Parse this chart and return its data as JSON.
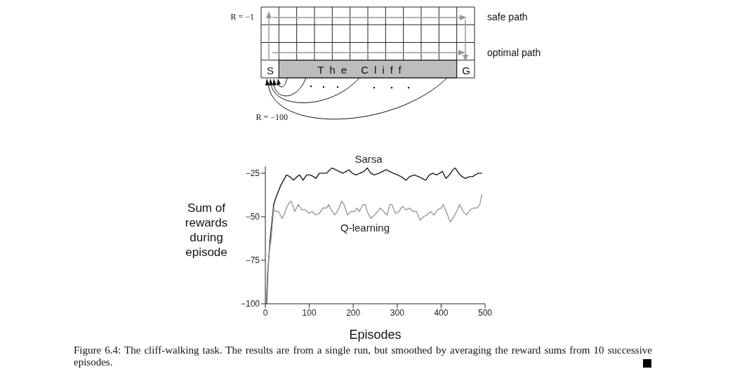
{
  "chart_data": {
    "type": "line",
    "xlabel": "Episodes",
    "ylabel": "Sum of rewards during episode",
    "xlim": [
      0,
      500
    ],
    "xticks": [
      0,
      100,
      200,
      300,
      400,
      500
    ],
    "ylim": [
      -100,
      -21
    ],
    "yticks": [
      {
        "value": -100,
        "label": "−100"
      },
      {
        "value": -75,
        "label": "−75"
      },
      {
        "value": -50,
        "label": "−50"
      },
      {
        "value": -25,
        "label": "−25"
      }
    ],
    "series": [
      {
        "name": "Sarsa",
        "color": "#1a1a1a",
        "x": [
          3,
          6,
          11,
          19,
          24,
          35,
          48,
          56,
          64,
          72,
          78,
          86,
          94,
          102,
          110,
          115,
          123,
          131,
          139,
          147,
          152,
          160,
          168,
          176,
          184,
          190,
          198,
          206,
          216,
          224,
          232,
          240,
          248,
          259,
          267,
          275,
          283,
          291,
          301,
          309,
          320,
          328,
          339,
          349,
          357,
          365,
          373,
          381,
          389,
          397,
          403,
          411,
          419,
          427,
          432,
          440,
          448,
          456,
          464,
          472,
          477,
          485,
          493
        ],
        "values": [
          -100,
          -80,
          -63,
          -43,
          -39,
          -32,
          -26,
          -27,
          -29,
          -27,
          -26,
          -29,
          -26,
          -26,
          -27,
          -28,
          -25,
          -25,
          -25,
          -23,
          -22,
          -23,
          -24,
          -25,
          -24,
          -23,
          -25,
          -26,
          -25,
          -24,
          -22,
          -25,
          -26,
          -25,
          -24,
          -23,
          -24,
          -25,
          -26,
          -27,
          -29,
          -27,
          -26,
          -27,
          -28,
          -29,
          -26,
          -25,
          -26,
          -25,
          -24,
          -28,
          -26,
          -23,
          -22,
          -25,
          -27,
          -28,
          -27,
          -27,
          -26,
          -25,
          -25
        ]
      },
      {
        "name": "Q-learning",
        "color": "#999999",
        "x": [
          2,
          5,
          9,
          13,
          19,
          22,
          30,
          38,
          43,
          48,
          54,
          59,
          67,
          75,
          83,
          91,
          99,
          107,
          115,
          123,
          131,
          139,
          144,
          150,
          158,
          166,
          174,
          179,
          187,
          195,
          203,
          208,
          214,
          222,
          227,
          232,
          240,
          248,
          256,
          261,
          269,
          277,
          283,
          288,
          296,
          304,
          312,
          320,
          328,
          336,
          344,
          352,
          360,
          368,
          376,
          384,
          392,
          400,
          405,
          413,
          421,
          429,
          437,
          442,
          450,
          458,
          466,
          474,
          482,
          488,
          493
        ],
        "values": [
          -100,
          -82,
          -70,
          -63,
          -45,
          -47,
          -47,
          -51,
          -49,
          -45,
          -42,
          -41,
          -47,
          -43,
          -46,
          -46,
          -48,
          -47,
          -49,
          -48,
          -45,
          -45,
          -43,
          -46,
          -49,
          -46,
          -41,
          -43,
          -49,
          -47,
          -47,
          -45,
          -47,
          -43,
          -43,
          -47,
          -51,
          -49,
          -47,
          -45,
          -47,
          -49,
          -43,
          -43,
          -48,
          -47,
          -44,
          -46,
          -45,
          -47,
          -47,
          -52,
          -50,
          -49,
          -47,
          -49,
          -46,
          -45,
          -43,
          -48,
          -53,
          -50,
          -46,
          -43,
          -47,
          -49,
          -46,
          -45,
          -45,
          -43,
          -37
        ]
      }
    ],
    "annotations": [
      "R = −1",
      "safe path",
      "optimal path",
      "S",
      "The Cliff",
      "G",
      "R = −100",
      "Figure 6.4: The cliff-walking task. The results are from a single run, but smoothed by averaging the reward sums from 10 successive episodes."
    ]
  }
}
